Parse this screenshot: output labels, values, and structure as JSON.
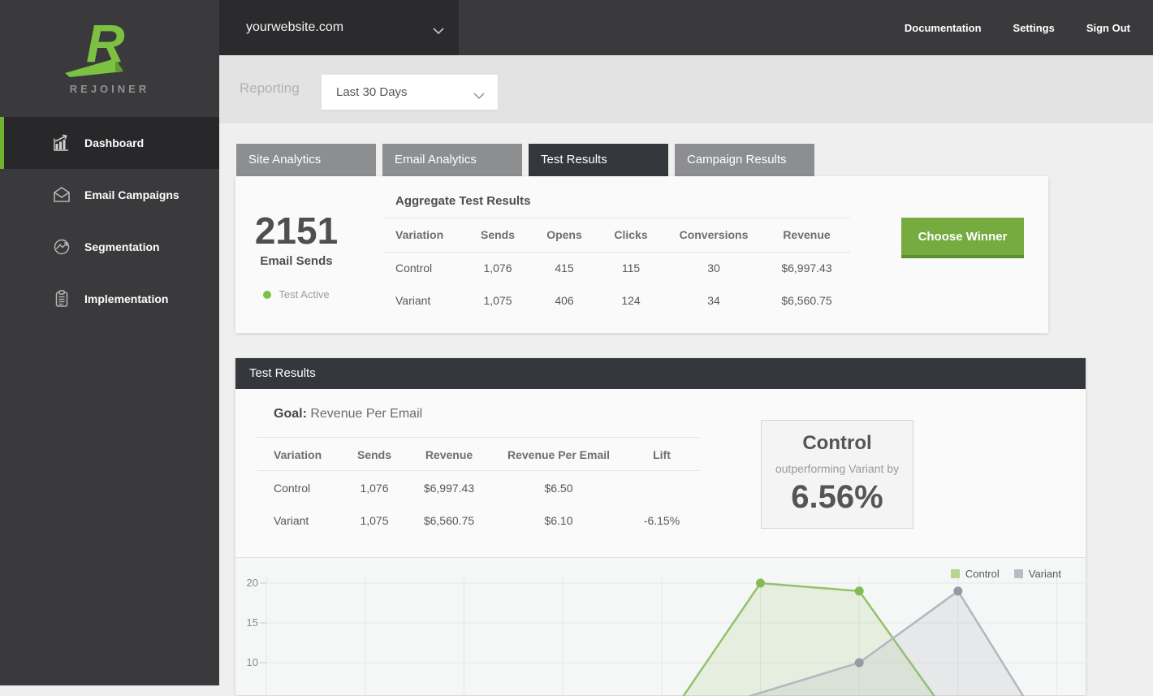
{
  "topbar": {
    "site_selector": {
      "value": "yourwebsite.com"
    },
    "links": [
      {
        "label": "Documentation"
      },
      {
        "label": "Settings"
      },
      {
        "label": "Sign Out"
      }
    ]
  },
  "sidebar": {
    "brand": "REJOINER",
    "items": [
      {
        "label": "Dashboard",
        "icon": "bar-chart-icon",
        "active": true
      },
      {
        "label": "Email Campaigns",
        "icon": "envelope-icon",
        "active": false
      },
      {
        "label": "Segmentation",
        "icon": "trend-circle-icon",
        "active": false
      },
      {
        "label": "Implementation",
        "icon": "clipboard-icon",
        "active": false
      }
    ]
  },
  "reporting": {
    "label": "Reporting",
    "date_range": "Last 30 Days"
  },
  "tabs": [
    {
      "label": "Site Analytics",
      "active": false
    },
    {
      "label": "Email Analytics",
      "active": false
    },
    {
      "label": "Test Results",
      "active": true
    },
    {
      "label": "Campaign Results",
      "active": false
    }
  ],
  "aggregate": {
    "title": "Aggregate Test Results",
    "stat": {
      "value": "2151",
      "label": "Email Sends",
      "status": "Test Active"
    },
    "headers": [
      "Variation",
      "Sends",
      "Opens",
      "Clicks",
      "Conversions",
      "Revenue"
    ],
    "rows": [
      [
        "Control",
        "1,076",
        "415",
        "115",
        "30",
        "$6,997.43"
      ],
      [
        "Variant",
        "1,075",
        "406",
        "124",
        "34",
        "$6,560.75"
      ]
    ],
    "button_label": "Choose Winner"
  },
  "test_results": {
    "section_title": "Test Results",
    "goal_label": "Goal:",
    "goal_value": "Revenue Per Email",
    "headers": [
      "Variation",
      "Sends",
      "Revenue",
      "Revenue Per Email",
      "Lift"
    ],
    "rows": [
      [
        "Control",
        "1,076",
        "$6,997.43",
        "$6.50",
        ""
      ],
      [
        "Variant",
        "1,075",
        "$6,560.75",
        "$6.10",
        "-6.15%"
      ]
    ],
    "winner": {
      "name": "Control",
      "description": "outperforming Variant by",
      "value": "6.56%"
    }
  },
  "chart_data": {
    "type": "area",
    "title": "",
    "xlabel": "",
    "ylabel": "",
    "ylim": [
      0,
      22
    ],
    "yticks": [
      20,
      15,
      10
    ],
    "grid": true,
    "legend_position": "top-right",
    "series": [
      {
        "name": "Control",
        "visible_points": [
          {
            "x": 5,
            "y": 20
          },
          {
            "x": 6,
            "y": 19
          }
        ],
        "polyline": [
          {
            "x": 4.22,
            "y": 5.8
          },
          {
            "x": 5,
            "y": 20
          },
          {
            "x": 6,
            "y": 19
          },
          {
            "x": 6.76,
            "y": 5.8
          }
        ],
        "line_color": "#93c268",
        "fill_color": "rgba(147,194,104,0.15)",
        "dot_color": "#85bb55",
        "legend_color": "#b7d492"
      },
      {
        "name": "Variant",
        "visible_points": [
          {
            "x": 6,
            "y": 10
          },
          {
            "x": 7,
            "y": 19
          }
        ],
        "polyline": [
          {
            "x": 4.89,
            "y": 5.8
          },
          {
            "x": 6,
            "y": 10
          },
          {
            "x": 7,
            "y": 19
          },
          {
            "x": 7.66,
            "y": 5.8
          }
        ],
        "line_color": "#b4b6c0",
        "fill_color": "rgba(167,170,181,0.18)",
        "dot_color": "#979aa5",
        "legend_color": "#babcc5"
      }
    ]
  },
  "colors": {
    "brand_green": "#7cc142",
    "nav_accent_green": "#71b52f",
    "button_green": "#76ab40",
    "button_green_shade": "#5d8f33",
    "status_dot_green": "#7bc143",
    "topbar_bg": "#3a3a3c",
    "selector_bg": "#2b2b2d",
    "sidebar_bg": "#3a3a3c",
    "active_nav_bg": "#28282a",
    "tab_bg": "#8d8e90",
    "section_bar_bg": "#34373c",
    "page_bg": "#efefef",
    "band_bg": "#e3e3e4",
    "card_bg": "#fafafa",
    "chart_bg": "#f5f6f6"
  }
}
